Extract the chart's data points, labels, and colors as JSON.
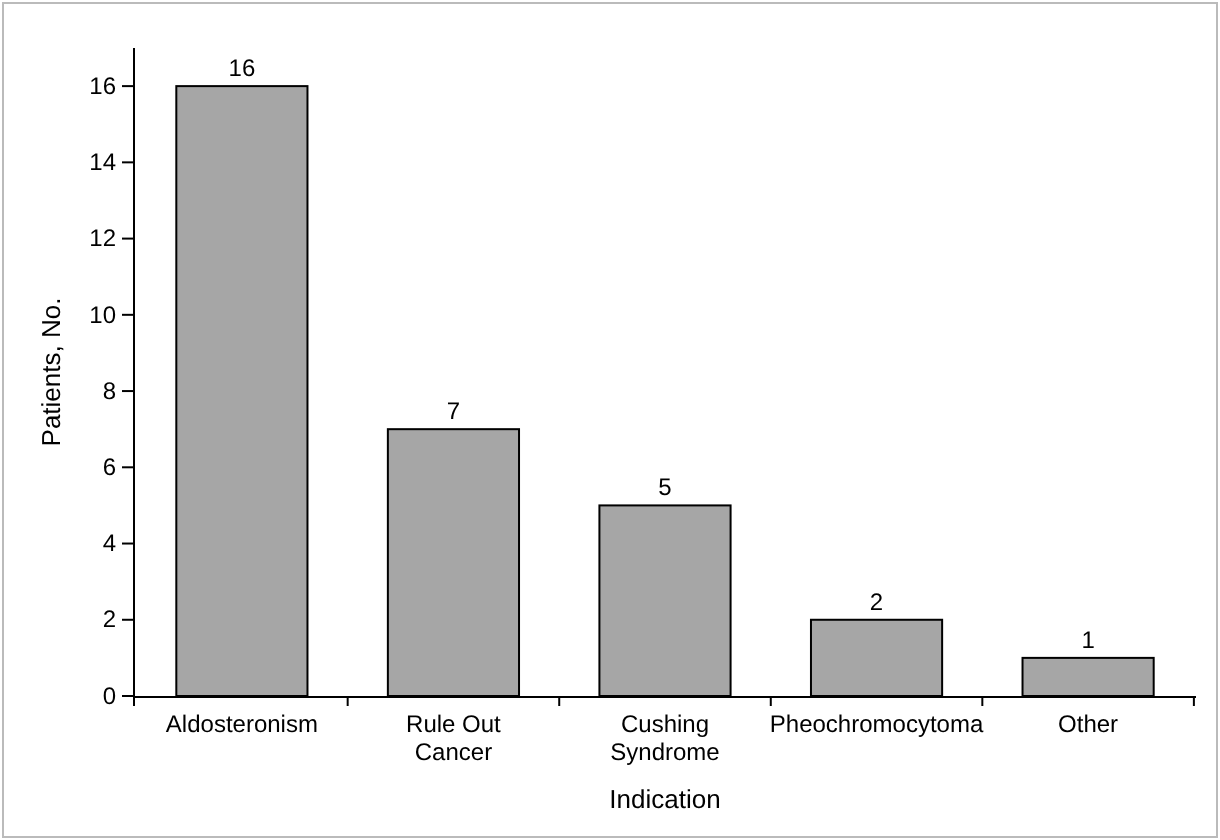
{
  "chart_data": {
    "type": "bar",
    "xlabel": "Indication",
    "ylabel": "Patients, No.",
    "categories": [
      "Aldosteronism",
      "Rule Out Cancer",
      "Cushing Syndrome",
      "Pheochromocytoma",
      "Other"
    ],
    "values": [
      16,
      7,
      5,
      2,
      1
    ],
    "color": "#a6a6a6",
    "ylim": [
      0,
      17
    ],
    "yticks": [
      0,
      2,
      4,
      6,
      8,
      10,
      12,
      14,
      16
    ],
    "grid": false,
    "data_labels": true
  }
}
